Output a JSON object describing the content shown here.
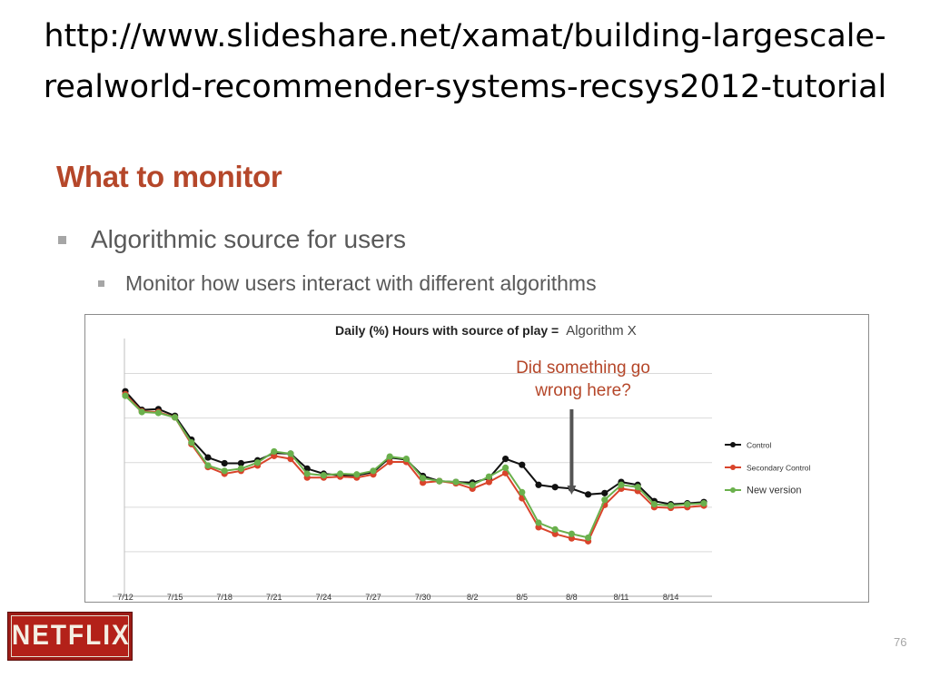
{
  "header": {
    "url_line1": "http://www.slideshare.net/xamat/building-largescale-",
    "url_line2": "realworld-recommender-systems-recsys2012-tutorial"
  },
  "slide": {
    "title": "What to monitor",
    "bullet1": "Algorithmic source for users",
    "bullet2": "Monitor how users interact with different algorithms",
    "page_number": "76"
  },
  "logo": {
    "text": "NETFLIX"
  },
  "colors": {
    "title": "#b5472a",
    "control": "#111111",
    "secondary_control": "#d9442b",
    "new_version": "#6ab04c"
  },
  "chart_data": {
    "type": "line",
    "title": "Daily (%) Hours with source of play =",
    "title_suffix": "Algorithm X",
    "annotation": [
      "Did something go",
      "wrong here?"
    ],
    "annotation_arrow_at": "8/8",
    "x": [
      "7/12",
      "7/13",
      "7/14",
      "7/15",
      "7/16",
      "7/17",
      "7/18",
      "7/19",
      "7/20",
      "7/21",
      "7/22",
      "7/23",
      "7/24",
      "7/25",
      "7/26",
      "7/27",
      "7/28",
      "7/29",
      "7/30",
      "7/31",
      "8/1",
      "8/2",
      "8/3",
      "8/4",
      "8/5",
      "8/6",
      "8/7",
      "8/8",
      "8/9",
      "8/10",
      "8/11",
      "8/12",
      "8/13",
      "8/14",
      "8/15",
      "8/16"
    ],
    "x_tick_labels": [
      "7/12",
      "7/15",
      "7/18",
      "7/21",
      "7/24",
      "7/27",
      "7/30",
      "8/2",
      "8/5",
      "8/8",
      "8/11",
      "8/14"
    ],
    "series": [
      {
        "name": "Control",
        "color": "#111111",
        "values": [
          72.0,
          63.7,
          64.0,
          61.0,
          50.3,
          42.3,
          39.7,
          39.7,
          41.0,
          44.3,
          44.0,
          37.3,
          35.0,
          34.3,
          34.3,
          35.7,
          42.3,
          41.3,
          34.0,
          31.7,
          31.3,
          31.0,
          33.0,
          41.7,
          39.0,
          30.0,
          29.0,
          28.3,
          25.7,
          26.3,
          31.3,
          30.0,
          22.7,
          21.3,
          21.7,
          22.3
        ]
      },
      {
        "name": "Secondary Control",
        "color": "#d9442b",
        "values": [
          70.7,
          63.0,
          62.7,
          60.3,
          48.3,
          38.0,
          35.0,
          36.3,
          38.7,
          43.0,
          41.7,
          33.3,
          33.3,
          33.7,
          33.3,
          34.7,
          40.3,
          40.3,
          31.0,
          31.7,
          30.7,
          28.3,
          31.3,
          35.3,
          24.0,
          11.0,
          8.0,
          6.0,
          4.7,
          21.0,
          28.3,
          27.3,
          20.0,
          19.7,
          20.0,
          20.7
        ]
      },
      {
        "name": "New version",
        "color": "#6ab04c",
        "values": [
          70.0,
          62.7,
          62.3,
          60.3,
          49.0,
          38.7,
          36.3,
          37.3,
          40.0,
          45.0,
          44.0,
          35.0,
          34.3,
          35.0,
          34.7,
          36.3,
          42.7,
          41.7,
          33.0,
          31.7,
          31.3,
          30.0,
          33.7,
          37.7,
          26.7,
          13.0,
          10.0,
          8.0,
          6.3,
          23.3,
          30.0,
          29.0,
          21.3,
          20.7,
          21.3,
          21.7
        ]
      }
    ],
    "ylim": [
      -20,
      90
    ],
    "grid": true,
    "legend_position": "right"
  }
}
